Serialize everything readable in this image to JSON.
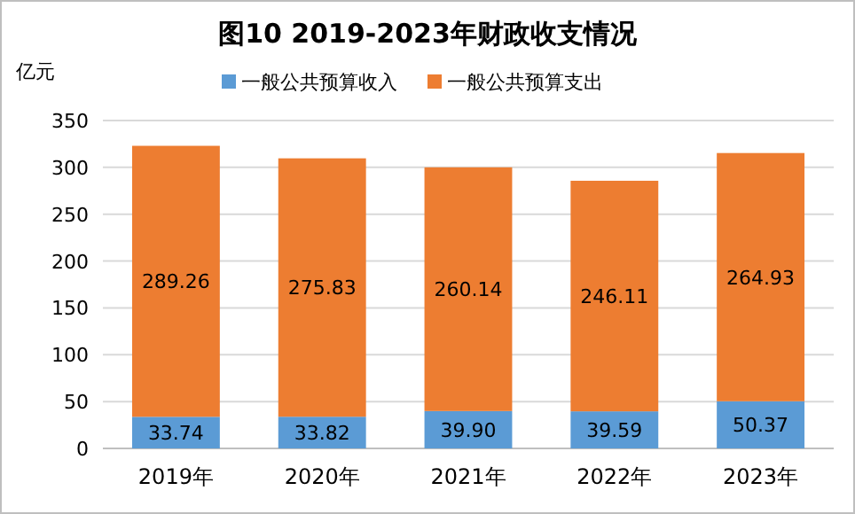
{
  "chart_data": {
    "type": "bar",
    "title": "图10  2019-2023年财政收支情况",
    "ylabel": "亿元",
    "categories": [
      "2019年",
      "2020年",
      "2021年",
      "2022年",
      "2023年"
    ],
    "series": [
      {
        "name": "一般公共预算收入",
        "color": "#5b9bd5",
        "values": [
          33.74,
          33.82,
          39.9,
          39.59,
          50.37
        ],
        "value_labels": [
          "33.74",
          "33.82",
          "39.90",
          "39.59",
          "50.37"
        ]
      },
      {
        "name": "一般公共预算支出",
        "color": "#ed7d31",
        "values": [
          289.26,
          275.83,
          260.14,
          246.11,
          264.93
        ],
        "value_labels": [
          "289.26",
          "275.83",
          "260.14",
          "246.11",
          "264.93"
        ]
      }
    ],
    "stacked": true,
    "ylim": [
      0,
      350
    ],
    "yticks": [
      0,
      50,
      100,
      150,
      200,
      250,
      300,
      350
    ],
    "grid": "y",
    "legend": "top"
  }
}
